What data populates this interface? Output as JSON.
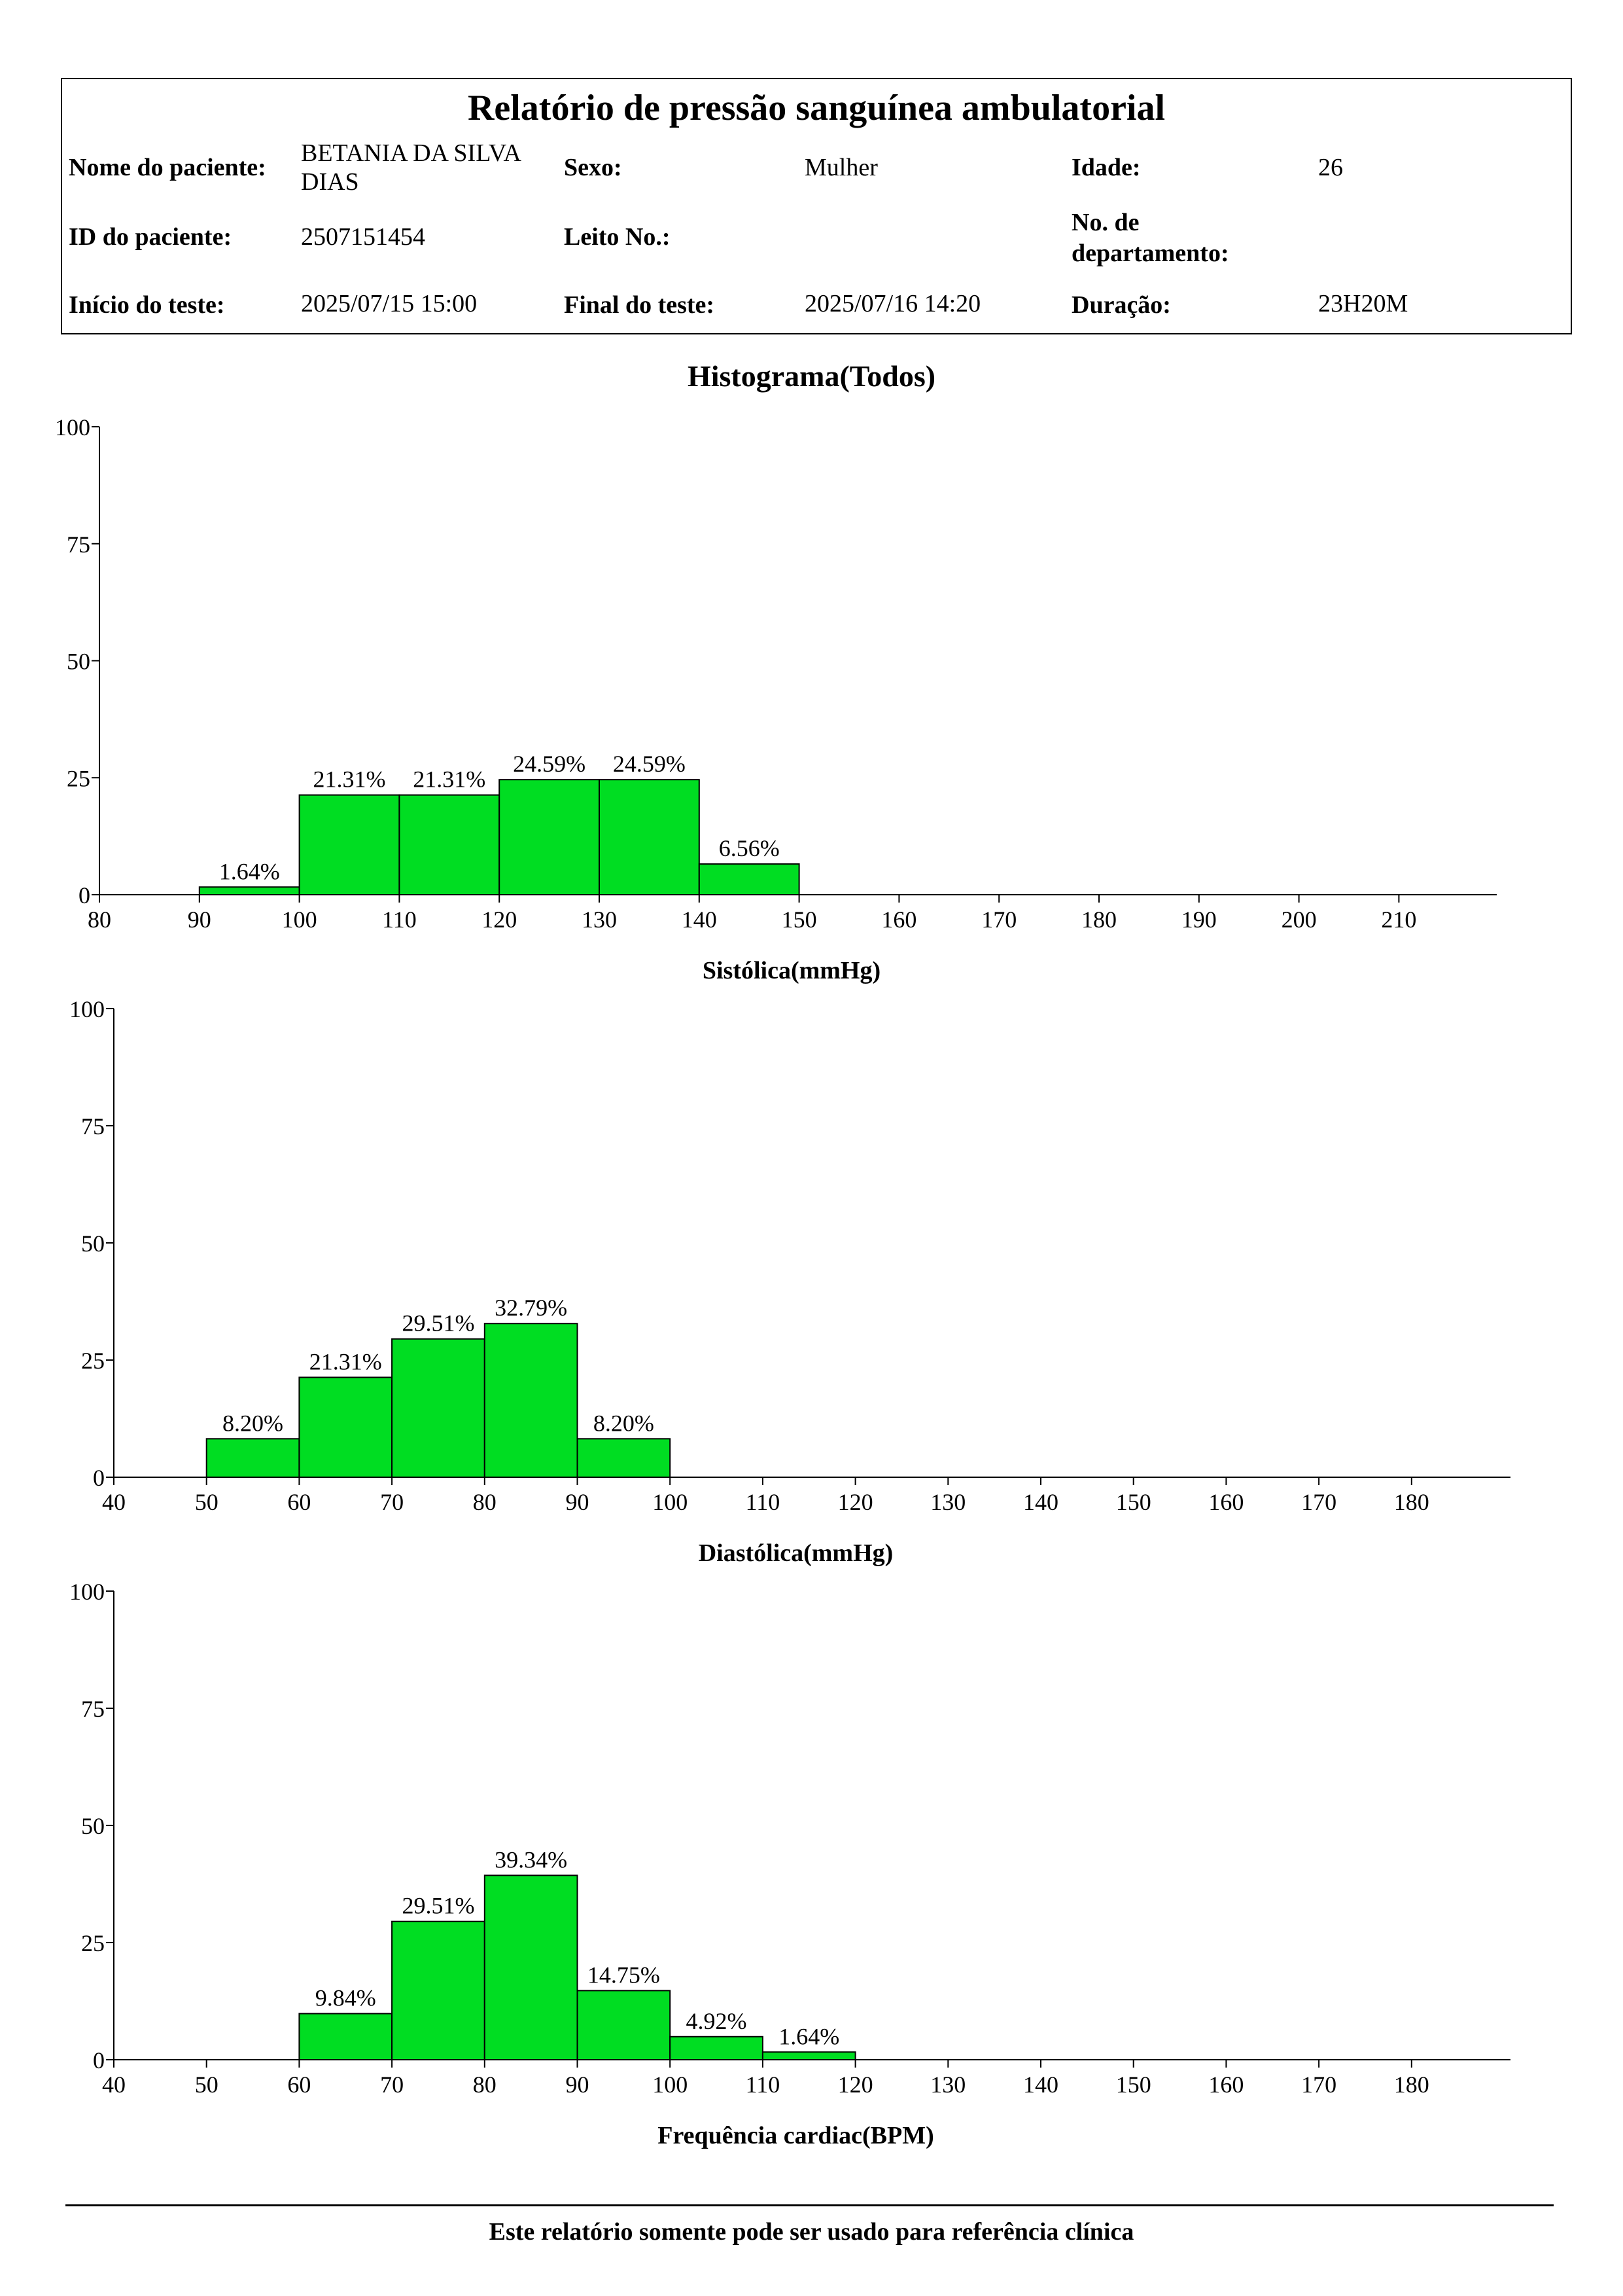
{
  "report": {
    "title": "Relatório de pressão sanguínea ambulatorial",
    "patient_name_label": "Nome do paciente:",
    "patient_name_line1": "BETANIA DA SILVA",
    "patient_name_line2": "DIAS",
    "sex_label": "Sexo:",
    "sex_value": "Mulher",
    "age_label": "Idade:",
    "age_value": "26",
    "patient_id_label": "ID do paciente:",
    "patient_id_value": "2507151454",
    "bed_label": "Leito No.:",
    "bed_value": "",
    "dept_label_line1": "No. de",
    "dept_label_line2": "departamento:",
    "dept_value": "",
    "start_label": "Início do teste:",
    "start_value": "2025/07/15 15:00",
    "end_label": "Final do teste:",
    "end_value": "2025/07/16 14:20",
    "duration_label": "Duração:",
    "duration_value": "23H20M"
  },
  "histogram_title": "Histograma(Todos)",
  "footer": "Este relatório somente pode ser usado para referência clínica",
  "colors": {
    "bar_fill": "#00dd22",
    "bar_stroke": "#000000"
  },
  "chart_data": [
    {
      "type": "bar",
      "xlabel": "Sistólica(mmHg)",
      "ylabel": "",
      "ylim": [
        0,
        100
      ],
      "yticks": [
        0,
        25,
        50,
        75,
        100
      ],
      "xlim": [
        80,
        220
      ],
      "xticks": [
        80,
        90,
        100,
        110,
        120,
        130,
        140,
        150,
        160,
        170,
        180,
        190,
        200,
        210
      ],
      "bins": [
        {
          "from": 90,
          "to": 100,
          "value": 1.64,
          "label": "1.64%"
        },
        {
          "from": 100,
          "to": 110,
          "value": 21.31,
          "label": "21.31%"
        },
        {
          "from": 110,
          "to": 120,
          "value": 21.31,
          "label": "21.31%"
        },
        {
          "from": 120,
          "to": 130,
          "value": 24.59,
          "label": "24.59%"
        },
        {
          "from": 130,
          "to": 140,
          "value": 24.59,
          "label": "24.59%"
        },
        {
          "from": 140,
          "to": 150,
          "value": 6.56,
          "label": "6.56%"
        }
      ]
    },
    {
      "type": "bar",
      "xlabel": "Diastólica(mmHg)",
      "ylabel": "",
      "ylim": [
        0,
        100
      ],
      "yticks": [
        0,
        25,
        50,
        75,
        100
      ],
      "xlim": [
        40,
        190
      ],
      "xticks": [
        40,
        50,
        60,
        70,
        80,
        90,
        100,
        110,
        120,
        130,
        140,
        150,
        160,
        170,
        180
      ],
      "bins": [
        {
          "from": 50,
          "to": 60,
          "value": 8.2,
          "label": "8.20%"
        },
        {
          "from": 60,
          "to": 70,
          "value": 21.31,
          "label": "21.31%"
        },
        {
          "from": 70,
          "to": 80,
          "value": 29.51,
          "label": "29.51%"
        },
        {
          "from": 80,
          "to": 90,
          "value": 32.79,
          "label": "32.79%"
        },
        {
          "from": 90,
          "to": 100,
          "value": 8.2,
          "label": "8.20%"
        }
      ]
    },
    {
      "type": "bar",
      "xlabel": "Frequência cardiac(BPM)",
      "ylabel": "",
      "ylim": [
        0,
        100
      ],
      "yticks": [
        0,
        25,
        50,
        75,
        100
      ],
      "xlim": [
        40,
        190
      ],
      "xticks": [
        40,
        50,
        60,
        70,
        80,
        90,
        100,
        110,
        120,
        130,
        140,
        150,
        160,
        170,
        180
      ],
      "bins": [
        {
          "from": 60,
          "to": 70,
          "value": 9.84,
          "label": "9.84%"
        },
        {
          "from": 70,
          "to": 80,
          "value": 29.51,
          "label": "29.51%"
        },
        {
          "from": 80,
          "to": 90,
          "value": 39.34,
          "label": "39.34%"
        },
        {
          "from": 90,
          "to": 100,
          "value": 14.75,
          "label": "14.75%"
        },
        {
          "from": 100,
          "to": 110,
          "value": 4.92,
          "label": "4.92%"
        },
        {
          "from": 110,
          "to": 120,
          "value": 1.64,
          "label": "1.64%"
        }
      ]
    }
  ]
}
